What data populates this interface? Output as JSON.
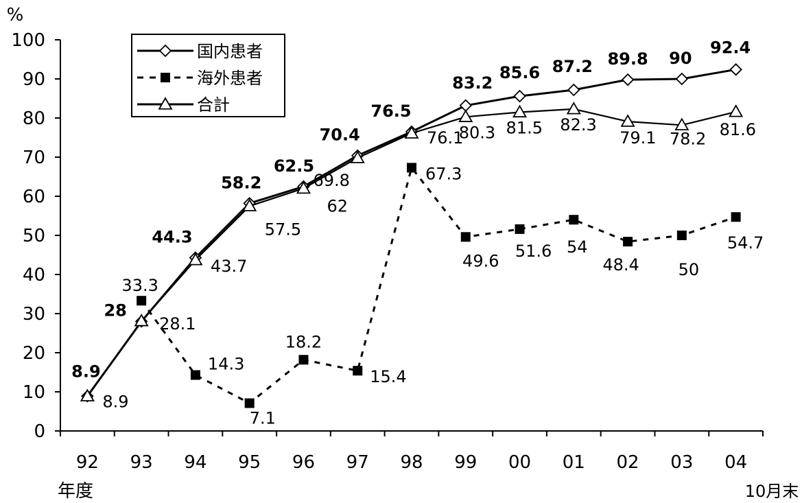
{
  "chart_data": {
    "type": "line",
    "y_unit_label": "%",
    "x_axis_label": "年度",
    "x_note": "10月末",
    "ylim": [
      0,
      100
    ],
    "yticks": [
      0,
      10,
      20,
      30,
      40,
      50,
      60,
      70,
      80,
      90,
      100
    ],
    "categories": [
      "92",
      "93",
      "94",
      "95",
      "96",
      "97",
      "98",
      "99",
      "00",
      "01",
      "02",
      "03",
      "04"
    ],
    "grid": false,
    "legend_position": "top-left",
    "series": [
      {
        "name": "国内患者",
        "style": "solid",
        "marker": "diamond",
        "values": [
          8.9,
          28,
          44.3,
          58.2,
          62.5,
          70.4,
          76.5,
          83.2,
          85.6,
          87.2,
          89.8,
          90,
          92.4
        ],
        "labels": [
          "8.9",
          "28",
          "44.3",
          "58.2",
          "62.5",
          "70.4",
          "76.5",
          "83.2",
          "85.6",
          "87.2",
          "89.8",
          "90",
          "92.4"
        ]
      },
      {
        "name": "海外患者",
        "style": "dashed",
        "marker": "square",
        "values": [
          null,
          33.3,
          14.3,
          7.1,
          18.2,
          15.4,
          67.3,
          49.6,
          51.6,
          54,
          48.4,
          50,
          54.7
        ],
        "labels": [
          null,
          "33.3",
          "14.3",
          "7.1",
          "18.2",
          "15.4",
          "67.3",
          "49.6",
          "51.6",
          "54",
          "48.4",
          "50",
          "54.7"
        ]
      },
      {
        "name": "合計",
        "style": "solid",
        "marker": "triangle",
        "values": [
          8.9,
          28.1,
          43.7,
          57.5,
          62,
          69.8,
          76.1,
          80.3,
          81.5,
          82.3,
          79.1,
          78.2,
          81.6
        ],
        "labels": [
          "8.9",
          "28.1",
          "43.7",
          "57.5",
          "62",
          "69.8",
          "76.1",
          "80.3",
          "81.5",
          "82.3",
          "79.1",
          "78.2",
          "81.6"
        ]
      }
    ]
  }
}
